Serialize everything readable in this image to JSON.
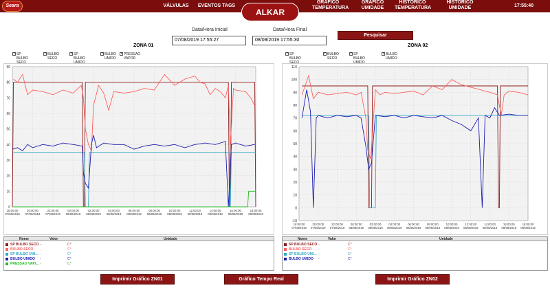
{
  "header": {
    "logo_text": "Seara",
    "nav": [
      {
        "label": "VÁLVULAS"
      },
      {
        "label": "EVENTOS TAGS"
      },
      {
        "label": "GRÁFICO\nTEMPERATURA"
      },
      {
        "label": "GRÁFICO\nUMIDADE"
      },
      {
        "label": "HISTÓRICO\nTEMPERATURA"
      },
      {
        "label": "HISTÓRICO\nUMIDADE"
      }
    ],
    "brand": "ALKAR",
    "clock": "17:55:40"
  },
  "filters": {
    "start_label": "Data/Hora Inicial",
    "start_value": "07/08/2019 17:55:27",
    "end_label": "Data/Hora Final",
    "end_value": "08/08/2019 17:55:30",
    "search_label": "Pesquisar"
  },
  "colors": {
    "brand": "#7b0d0d",
    "sp_bulbo_seco": "#8b1a1a",
    "bulbo_seco": "#ff6060",
    "sp_bulbo_umido": "#33a8c8",
    "bulbo_umido": "#1a1ab0",
    "pressao_vapor": "#22bb22"
  },
  "zones": [
    {
      "title": "ZONA 01",
      "legend": [
        "SP BULBO SECO",
        "BULBO SECO",
        "SP BULBO UMIDO",
        "BULBO UMIDO",
        "PRESSAO VAPOR"
      ],
      "table": {
        "headers": [
          "Nome",
          "Valor",
          "Unidade"
        ],
        "rows": [
          {
            "name": "SP BULBO SECO",
            "value": "-",
            "unit": "C°",
            "color": "#8b1a1a"
          },
          {
            "name": "BULBO SECO",
            "value": "-",
            "unit": "C°",
            "color": "#ff6060"
          },
          {
            "name": "SP BULBO UMI...",
            "value": "-",
            "unit": "C°",
            "color": "#33a8c8"
          },
          {
            "name": "BULBO UMIDO",
            "value": "-",
            "unit": "C°",
            "color": "#1a1ab0"
          },
          {
            "name": "PRESSAO VAPI...",
            "value": "-",
            "unit": "C°",
            "color": "#22bb22"
          }
        ]
      }
    },
    {
      "title": "ZONA 02",
      "legend": [
        "SP BULBO SECO",
        "BULBO SECO",
        "SP BULBO UMIDO",
        "BULBO UMIDO"
      ],
      "table": {
        "headers": [
          "Nome",
          "Valor",
          "Unidade"
        ],
        "rows": [
          {
            "name": "SP BULBO SECO",
            "value": "-",
            "unit": "C°",
            "color": "#8b1a1a"
          },
          {
            "name": "BULBO SECO",
            "value": "-",
            "unit": "C°",
            "color": "#ff6060"
          },
          {
            "name": "SP BULBO UMI...",
            "value": "-",
            "unit": "C°",
            "color": "#33a8c8"
          },
          {
            "name": "BULBO UMIDO",
            "value": "-",
            "unit": "C°",
            "color": "#1a1ab0"
          }
        ]
      }
    }
  ],
  "buttons": {
    "print_zn01": "Imprimir Gráfico ZN01",
    "realtime": "Gráfico Tempo Real",
    "print_zn02": "Imprimir Gráfico ZN02"
  },
  "chart_data": [
    {
      "type": "line",
      "title": "ZONA 01",
      "ylim": [
        0,
        90
      ],
      "yticks": [
        0,
        10,
        20,
        30,
        40,
        50,
        60,
        70,
        80,
        90
      ],
      "xticks": [
        {
          "time": "18:00:00",
          "date": "07/08/2019"
        },
        {
          "time": "20:00:00",
          "date": "07/08/2019"
        },
        {
          "time": "22:00:00",
          "date": "07/08/2019"
        },
        {
          "time": "00:00:00",
          "date": "08/08/2019"
        },
        {
          "time": "02:00:00",
          "date": "08/08/2019"
        },
        {
          "time": "04:00:00",
          "date": "08/08/2019"
        },
        {
          "time": "06:00:00",
          "date": "08/08/2019"
        },
        {
          "time": "08:00:00",
          "date": "08/08/2019"
        },
        {
          "time": "10:00:00",
          "date": "08/08/2019"
        },
        {
          "time": "12:00:00",
          "date": "08/08/2019"
        },
        {
          "time": "14:00:00",
          "date": "08/08/2019"
        },
        {
          "time": "16:00:00",
          "date": "08/08/2019"
        },
        {
          "time": "18:00:00",
          "date": "08/08/2019"
        }
      ],
      "x_hours_range": [
        0,
        24
      ],
      "grid": true,
      "series": [
        {
          "name": "SP BULBO SECO",
          "color": "#8b1a1a",
          "points": [
            [
              0,
              0
            ],
            [
              0.1,
              80
            ],
            [
              6.9,
              80
            ],
            [
              7,
              0
            ],
            [
              7.1,
              0
            ],
            [
              7.2,
              80
            ],
            [
              21.3,
              80
            ],
            [
              21.4,
              0
            ],
            [
              21.5,
              0
            ],
            [
              21.6,
              80
            ],
            [
              23.9,
              80
            ],
            [
              24,
              0
            ]
          ]
        },
        {
          "name": "BULBO SECO",
          "color": "#ff6060",
          "points": [
            [
              0.1,
              82
            ],
            [
              0.5,
              80
            ],
            [
              1,
              85
            ],
            [
              1.5,
              72
            ],
            [
              2,
              75
            ],
            [
              3,
              74
            ],
            [
              4,
              72
            ],
            [
              5,
              75
            ],
            [
              6,
              73
            ],
            [
              6.8,
              78
            ],
            [
              7,
              70
            ],
            [
              7.2,
              50
            ],
            [
              7.5,
              40
            ],
            [
              7.8,
              36
            ],
            [
              8,
              65
            ],
            [
              8.5,
              78
            ],
            [
              9,
              73
            ],
            [
              9.5,
              62
            ],
            [
              10,
              74
            ],
            [
              11,
              73
            ],
            [
              12,
              74
            ],
            [
              13,
              76
            ],
            [
              14,
              75
            ],
            [
              15,
              85
            ],
            [
              16,
              78
            ],
            [
              17,
              82
            ],
            [
              18,
              84
            ],
            [
              18.5,
              80
            ],
            [
              19,
              79
            ],
            [
              19.5,
              72
            ],
            [
              20,
              76
            ],
            [
              20.5,
              74
            ],
            [
              21,
              70
            ],
            [
              21.3,
              78
            ],
            [
              21.5,
              40
            ],
            [
              21.8,
              76
            ],
            [
              22,
              75
            ],
            [
              23,
              74
            ],
            [
              23.5,
              70
            ],
            [
              23.9,
              65
            ]
          ]
        },
        {
          "name": "SP BULBO UMIDO",
          "color": "#33a8c8",
          "points": [
            [
              0.1,
              35
            ],
            [
              7.1,
              35
            ],
            [
              7.2,
              0
            ],
            [
              7.5,
              0
            ],
            [
              7.6,
              35
            ],
            [
              21.4,
              35
            ],
            [
              21.5,
              0
            ],
            [
              21.6,
              35
            ],
            [
              24,
              35
            ]
          ]
        },
        {
          "name": "BULBO UMIDO",
          "color": "#1a1ab0",
          "points": [
            [
              0,
              37
            ],
            [
              0.5,
              38
            ],
            [
              1,
              36
            ],
            [
              1.5,
              40
            ],
            [
              2,
              38
            ],
            [
              3,
              40
            ],
            [
              4,
              39
            ],
            [
              5,
              41
            ],
            [
              6,
              40
            ],
            [
              6.9,
              39
            ],
            [
              7,
              22
            ],
            [
              7.2,
              15
            ],
            [
              7.5,
              12
            ],
            [
              7.8,
              40
            ],
            [
              8,
              46
            ],
            [
              8.3,
              38
            ],
            [
              9,
              41
            ],
            [
              10,
              40
            ],
            [
              11,
              40
            ],
            [
              12,
              37
            ],
            [
              13,
              39
            ],
            [
              14,
              40
            ],
            [
              15,
              39
            ],
            [
              16,
              40
            ],
            [
              17,
              38
            ],
            [
              18,
              40
            ],
            [
              19,
              41
            ],
            [
              20,
              40
            ],
            [
              21,
              42
            ],
            [
              21.3,
              0
            ],
            [
              21.6,
              40
            ],
            [
              22,
              41
            ],
            [
              23,
              39
            ],
            [
              23.9,
              40
            ]
          ]
        },
        {
          "name": "PRESSAO VAPOR",
          "color": "#22bb22",
          "points": [
            [
              0,
              0
            ],
            [
              23.2,
              0
            ],
            [
              23.3,
              10
            ],
            [
              24,
              10
            ]
          ]
        }
      ]
    },
    {
      "type": "line",
      "title": "ZONA 02",
      "ylim": [
        -10,
        110
      ],
      "yticks": [
        -10,
        0,
        10,
        20,
        30,
        40,
        50,
        60,
        70,
        80,
        90,
        100,
        110
      ],
      "xticks": [
        {
          "time": "18:00:00",
          "date": "07/08/2019"
        },
        {
          "time": "20:00:00",
          "date": "07/08/2019"
        },
        {
          "time": "22:00:00",
          "date": "07/08/2019"
        },
        {
          "time": "00:00:00",
          "date": "08/08/2019"
        },
        {
          "time": "02:00:00",
          "date": "08/08/2019"
        },
        {
          "time": "04:00:00",
          "date": "08/08/2019"
        },
        {
          "time": "06:00:00",
          "date": "08/08/2019"
        },
        {
          "time": "08:00:00",
          "date": "08/08/2019"
        },
        {
          "time": "10:00:00",
          "date": "08/08/2019"
        },
        {
          "time": "12:00:00",
          "date": "08/08/2019"
        },
        {
          "time": "14:00:00",
          "date": "08/08/2019"
        },
        {
          "time": "16:00:00",
          "date": "08/08/2019"
        },
        {
          "time": "18:00:00",
          "date": "08/08/2019"
        }
      ],
      "x_hours_range": [
        0,
        24
      ],
      "grid": true,
      "series": [
        {
          "name": "SP BULBO SECO",
          "color": "#8b1a1a",
          "points": [
            [
              0.3,
              95
            ],
            [
              7.2,
              95
            ],
            [
              7.3,
              0
            ],
            [
              7.6,
              0
            ],
            [
              7.7,
              95
            ],
            [
              20.8,
              95
            ],
            [
              20.9,
              0
            ],
            [
              21,
              0
            ],
            [
              21.1,
              95
            ],
            [
              24,
              95
            ]
          ]
        },
        {
          "name": "BULBO SECO",
          "color": "#ff6060",
          "points": [
            [
              0.3,
              88
            ],
            [
              1,
              103
            ],
            [
              1.5,
              85
            ],
            [
              2,
              90
            ],
            [
              3,
              88
            ],
            [
              4,
              89
            ],
            [
              5,
              90
            ],
            [
              6,
              88
            ],
            [
              6.5,
              90
            ],
            [
              7,
              70
            ],
            [
              7.2,
              45
            ],
            [
              7.5,
              38
            ],
            [
              7.8,
              70
            ],
            [
              8,
              92
            ],
            [
              8.5,
              88
            ],
            [
              9,
              90
            ],
            [
              10,
              89
            ],
            [
              11,
              90
            ],
            [
              12,
              91
            ],
            [
              13,
              88
            ],
            [
              14,
              95
            ],
            [
              15,
              92
            ],
            [
              16,
              100
            ],
            [
              17,
              96
            ],
            [
              18,
              94
            ],
            [
              19,
              92
            ],
            [
              20,
              90
            ],
            [
              20.8,
              88
            ],
            [
              21.2,
              72
            ],
            [
              21.5,
              88
            ],
            [
              22,
              91
            ],
            [
              23,
              90
            ],
            [
              24,
              88
            ]
          ]
        },
        {
          "name": "SP BULBO UMIDO",
          "color": "#33a8c8",
          "points": [
            [
              0.3,
              72
            ],
            [
              7.3,
              72
            ],
            [
              7.4,
              0
            ],
            [
              8,
              0
            ],
            [
              8.1,
              72
            ],
            [
              24,
              72
            ]
          ]
        },
        {
          "name": "BULBO UMIDO",
          "color": "#1a1ab0",
          "points": [
            [
              0.3,
              70
            ],
            [
              0.8,
              92
            ],
            [
              1.2,
              75
            ],
            [
              1.5,
              0
            ],
            [
              1.8,
              70
            ],
            [
              2,
              72
            ],
            [
              3,
              70
            ],
            [
              4,
              72
            ],
            [
              5,
              71
            ],
            [
              6,
              72
            ],
            [
              6.5,
              70
            ],
            [
              7,
              48
            ],
            [
              7.3,
              30
            ],
            [
              7.6,
              35
            ],
            [
              8,
              72
            ],
            [
              9,
              71
            ],
            [
              10,
              72
            ],
            [
              11,
              70
            ],
            [
              12,
              72
            ],
            [
              13,
              71
            ],
            [
              14,
              70
            ],
            [
              15,
              72
            ],
            [
              16,
              68
            ],
            [
              17,
              65
            ],
            [
              18,
              60
            ],
            [
              18.8,
              70
            ],
            [
              19.2,
              0
            ],
            [
              19.5,
              72
            ],
            [
              20,
              70
            ],
            [
              20.5,
              78
            ],
            [
              21,
              72
            ],
            [
              22,
              73
            ],
            [
              23,
              72
            ],
            [
              24,
              72
            ]
          ]
        }
      ]
    }
  ]
}
